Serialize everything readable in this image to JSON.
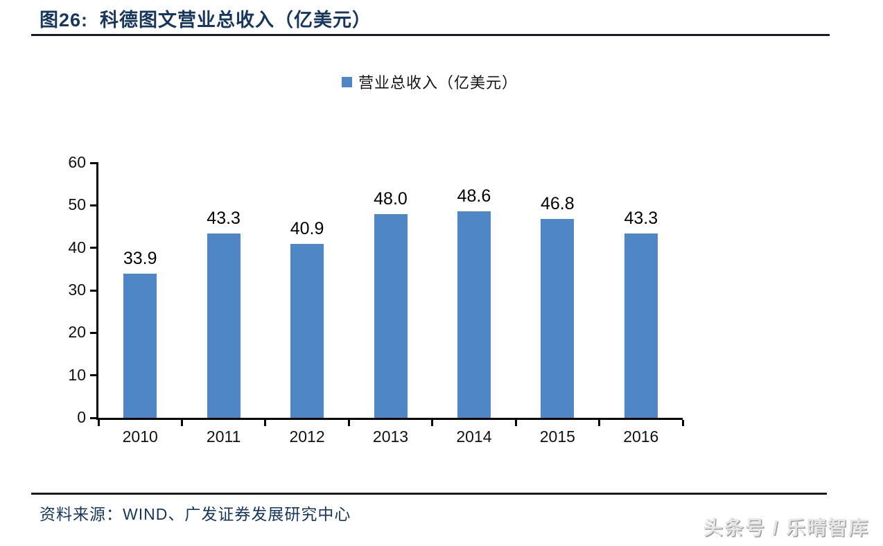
{
  "header": {
    "title": "图26:  科德图文营业总收入（亿美元）"
  },
  "chart_data": {
    "type": "bar",
    "title": "科德图文营业总收入（亿美元）",
    "legend": "营业总收入（亿美元）",
    "categories": [
      "2010",
      "2011",
      "2012",
      "2013",
      "2014",
      "2015",
      "2016"
    ],
    "values": [
      33.9,
      43.3,
      40.9,
      48.0,
      48.6,
      46.8,
      43.3
    ],
    "ylim": [
      0,
      60
    ],
    "yticks": [
      0,
      10,
      20,
      30,
      40,
      50,
      60
    ],
    "grid": false,
    "legend_position": "top-center",
    "bar_color": "#4E86C6",
    "value_label_decimals": 1
  },
  "footer": {
    "source": "资料来源：WIND、广发证券发展研究中心",
    "watermark": "头条号 / 乐晴智库"
  },
  "colors": {
    "title_navy": "#16365D",
    "bar_blue": "#4E86C6",
    "rule_dark": "#1A1A24",
    "axis_black": "#000000",
    "watermark_gray": "#E6E6E6"
  }
}
